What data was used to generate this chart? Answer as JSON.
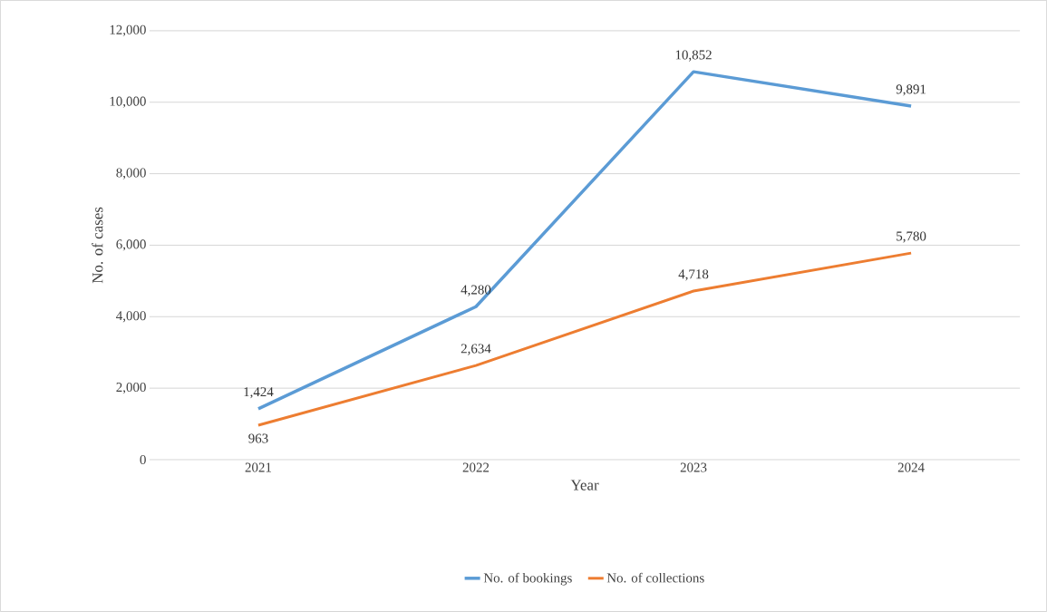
{
  "chart_data": {
    "type": "line",
    "xlabel": "Year",
    "ylabel": "No. of cases",
    "categories": [
      "2021",
      "2022",
      "2023",
      "2024"
    ],
    "series": [
      {
        "name": "No. of bookings",
        "color": "#5b9bd5",
        "values": [
          1424,
          4280,
          10852,
          9891
        ],
        "value_labels": [
          "1,424",
          "4,280",
          "10,852",
          "9,891"
        ]
      },
      {
        "name": "No. of collections",
        "color": "#ed7d31",
        "values": [
          963,
          2634,
          4718,
          5780
        ],
        "value_labels": [
          "963",
          "2,634",
          "4,718",
          "5,780"
        ]
      }
    ],
    "ylim": [
      0,
      12000
    ],
    "yticks": [
      0,
      {
        "value": 2000,
        "label": "2,000"
      },
      {
        "value": 4000,
        "label": "4,000"
      },
      {
        "value": 6000,
        "label": "6,000"
      },
      {
        "value": 8000,
        "label": "8,000"
      },
      {
        "value": 10000,
        "label": "10,000"
      },
      {
        "value": 12000,
        "label": "12,000"
      }
    ],
    "grid": "y",
    "legend": "bottom",
    "marker": "none",
    "line_style": "solid"
  }
}
